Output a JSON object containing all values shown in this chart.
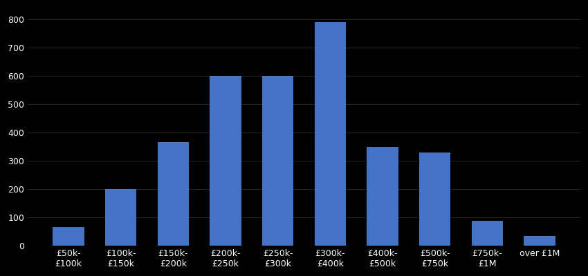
{
  "categories": [
    "£50k-\n£100k",
    "£100k-\n£150k",
    "£150k-\n£200k",
    "£200k-\n£250k",
    "£250k-\n£300k",
    "£300k-\n£400k",
    "£400k-\n£500k",
    "£500k-\n£750k",
    "£750k-\n£1M",
    "over £1M"
  ],
  "values": [
    65,
    200,
    365,
    600,
    600,
    790,
    348,
    328,
    88,
    35
  ],
  "bar_color": "#4472C4",
  "background_color": "#000000",
  "text_color": "#ffffff",
  "grid_color": "#333333",
  "ylim": [
    0,
    840
  ],
  "yticks": [
    0,
    100,
    200,
    300,
    400,
    500,
    600,
    700,
    800
  ],
  "bar_width": 0.6,
  "figsize": [
    8.5,
    4.0
  ],
  "dpi": 100,
  "tick_fontsize": 9,
  "grid_linewidth": 0.5
}
